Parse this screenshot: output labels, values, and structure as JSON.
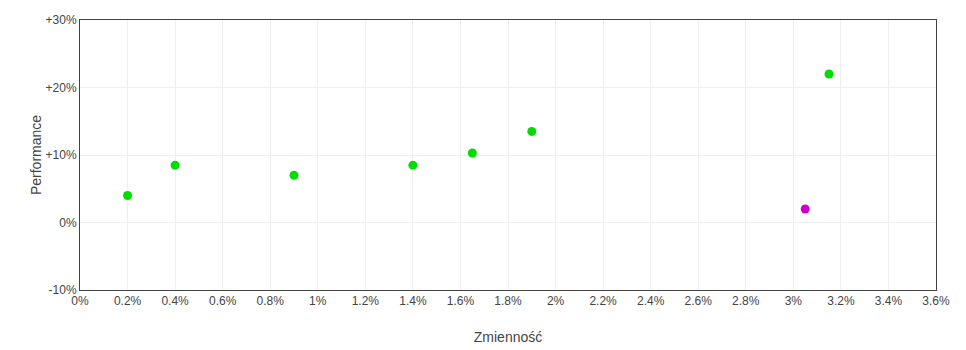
{
  "chart_data": {
    "type": "scatter",
    "xlabel": "Zmienność",
    "ylabel": "Performance",
    "series": [
      {
        "color": "#00dd00",
        "x": [
          0.002,
          0.004,
          0.009,
          0.014,
          0.0165,
          0.019,
          0.0315
        ],
        "values": [
          0.04,
          0.085,
          0.07,
          0.085,
          0.103,
          0.135,
          0.22
        ]
      },
      {
        "color": "#cc00cc",
        "x": [
          0.0305
        ],
        "values": [
          0.02
        ]
      }
    ],
    "xlim": [
      0.0,
      0.036
    ],
    "xticks": [
      {
        "value": 0.0,
        "label": "0%"
      },
      {
        "value": 0.002,
        "label": "0.2%"
      },
      {
        "value": 0.004,
        "label": "0.4%"
      },
      {
        "value": 0.006,
        "label": "0.6%"
      },
      {
        "value": 0.008,
        "label": "0.8%"
      },
      {
        "value": 0.01,
        "label": "1%"
      },
      {
        "value": 0.012,
        "label": "1.2%"
      },
      {
        "value": 0.014,
        "label": "1.4%"
      },
      {
        "value": 0.016,
        "label": "1.6%"
      },
      {
        "value": 0.018,
        "label": "1.8%"
      },
      {
        "value": 0.02,
        "label": "2%"
      },
      {
        "value": 0.022,
        "label": "2.2%"
      },
      {
        "value": 0.024,
        "label": "2.4%"
      },
      {
        "value": 0.026,
        "label": "2.6%"
      },
      {
        "value": 0.028,
        "label": "2.8%"
      },
      {
        "value": 0.03,
        "label": "3%"
      },
      {
        "value": 0.032,
        "label": "3.2%"
      },
      {
        "value": 0.034,
        "label": "3.4%"
      },
      {
        "value": 0.036,
        "label": "3.6%"
      }
    ],
    "ylim": [
      -0.1,
      0.3
    ],
    "yticks": [
      {
        "value": -0.1,
        "label": "-10%"
      },
      {
        "value": 0.0,
        "label": "0%"
      },
      {
        "value": 0.1,
        "label": "+10%"
      },
      {
        "value": 0.2,
        "label": "+20%"
      },
      {
        "value": 0.3,
        "label": "+30%"
      }
    ],
    "grid": true
  }
}
